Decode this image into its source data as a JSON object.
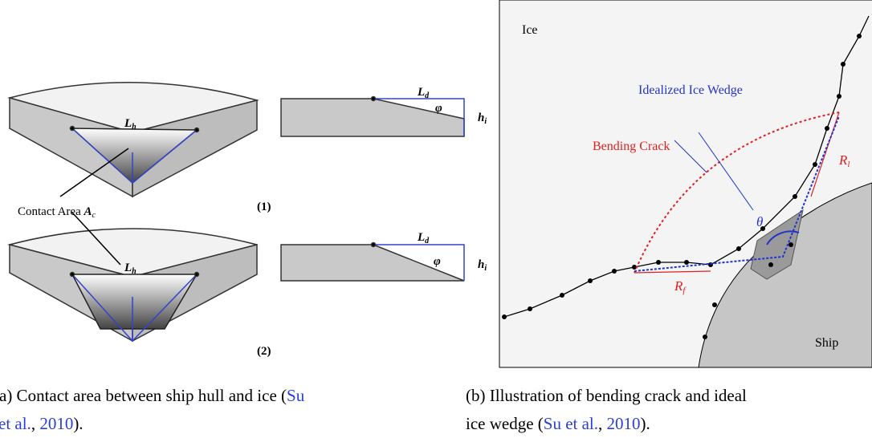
{
  "figure_a": {
    "top": {
      "length_label": {
        "symbol": "L",
        "subscript": "h"
      },
      "side_length_label": {
        "symbol": "L",
        "subscript": "d"
      },
      "angle_label": "φ",
      "thickness_label": {
        "symbol": "h",
        "subscript": "i"
      },
      "case_label": "(1)"
    },
    "contact_label": {
      "text": "Contact Area",
      "symbol": "A",
      "subscript": "c"
    },
    "bottom": {
      "length_label": {
        "symbol": "L",
        "subscript": "h"
      },
      "side_length_label": {
        "symbol": "L",
        "subscript": "d"
      },
      "angle_label": "φ",
      "thickness_label": {
        "symbol": "h",
        "subscript": "i"
      },
      "case_label": "(2)"
    },
    "caption": {
      "line1": "(a) Contact area between ship hull and ice (",
      "link1": "Su",
      "line2_link": "et al.",
      "sep": ", ",
      "year": "2010",
      "end": ")."
    }
  },
  "figure_b": {
    "ice_label": "Ice",
    "wedge_label": "Idealized Ice Wedge",
    "crack_label": "Bending Crack",
    "rl_label": {
      "symbol": "R",
      "subscript": "l"
    },
    "theta_label": "θ",
    "rf_label": {
      "symbol": "R",
      "subscript": "f"
    },
    "ship_label": "Ship",
    "caption": {
      "line1": "(b) Illustration of bending crack and ideal",
      "line2": "ice wedge (",
      "link": "Su et al.",
      "sep": ", ",
      "year": "2010",
      "end": ")."
    }
  }
}
